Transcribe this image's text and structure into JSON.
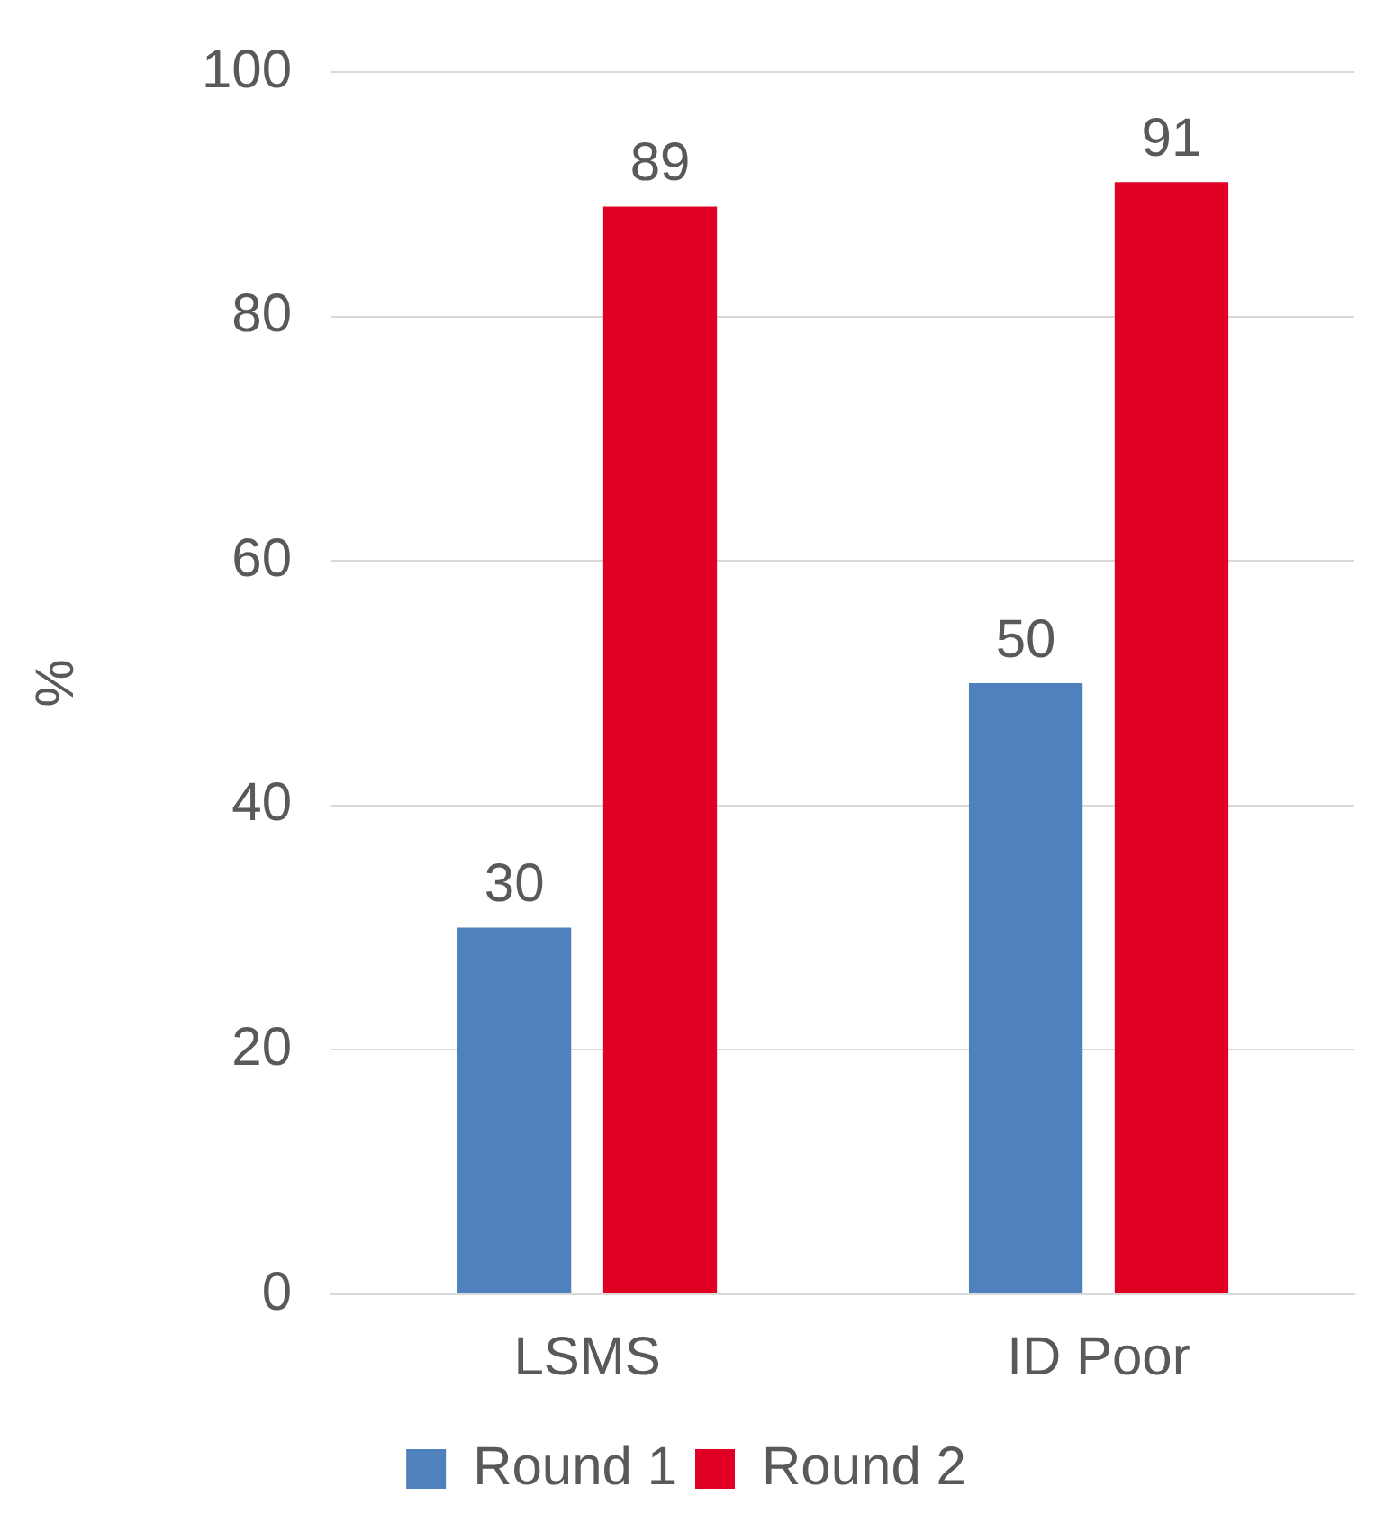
{
  "chart_data": {
    "type": "bar",
    "ylabel": "%",
    "categories": [
      "LSMS",
      "ID Poor"
    ],
    "series": [
      {
        "name": "Round 1",
        "color": "#4f81bd",
        "values": [
          30,
          50
        ]
      },
      {
        "name": "Round 2",
        "color": "#e00024",
        "values": [
          89,
          91
        ]
      }
    ],
    "ylim": [
      0,
      100
    ],
    "yticks": [
      0,
      20,
      40,
      60,
      80,
      100
    ],
    "grid": "y",
    "legend": "bottom",
    "data_labels": true
  }
}
